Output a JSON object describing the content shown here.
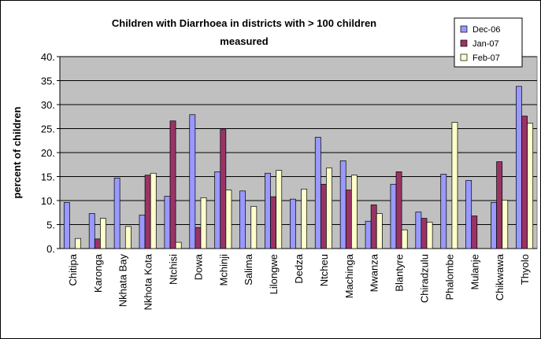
{
  "chart_data": {
    "type": "bar",
    "title_lines": [
      "Children with Diarrhoea in districts with > 100 children",
      "measured"
    ],
    "xlabel": "",
    "ylabel": "percent of children",
    "ylim": [
      0,
      40
    ],
    "yticks": [
      "0.",
      "5.",
      "10.",
      "15.",
      "20.",
      "25.",
      "30.",
      "35.",
      "40."
    ],
    "grid": "horizontal",
    "legend_position": "top-right",
    "plot_background": "#c0c0c0",
    "categories": [
      "Chitipa",
      "Karonga",
      "Nkhata Bay",
      "Nkhota Kota",
      "Ntchisi",
      "Dowa",
      "Mchinji",
      "Salima",
      "Lilongwe",
      "Dedza",
      "Ntcheu",
      "Machinga",
      "Mwanza",
      "Blantyre",
      "Chiradzulu",
      "Phalombe",
      "Mulanje",
      "Chikwawa",
      "Thyolo"
    ],
    "series": [
      {
        "name": "Dec-06",
        "color": "#9999ff",
        "values": [
          9.6,
          7.3,
          14.7,
          7.0,
          10.9,
          27.9,
          16.0,
          12.0,
          15.7,
          10.3,
          23.2,
          18.3,
          5.7,
          13.4,
          7.6,
          15.5,
          14.2,
          9.6,
          33.8
        ]
      },
      {
        "name": "Jan-07",
        "color": "#993366",
        "values": [
          0,
          2.0,
          0,
          15.3,
          26.6,
          4.4,
          24.8,
          0,
          10.8,
          0,
          13.4,
          12.2,
          9.1,
          16.0,
          6.3,
          0,
          6.8,
          18.1,
          27.6
        ]
      },
      {
        "name": "Feb-07",
        "color": "#ffffcc",
        "values": [
          2.1,
          6.3,
          4.6,
          15.7,
          1.3,
          10.6,
          12.2,
          8.8,
          16.3,
          12.4,
          16.8,
          15.3,
          7.3,
          3.9,
          5.5,
          26.3,
          0,
          10.1,
          26.1
        ]
      }
    ]
  }
}
